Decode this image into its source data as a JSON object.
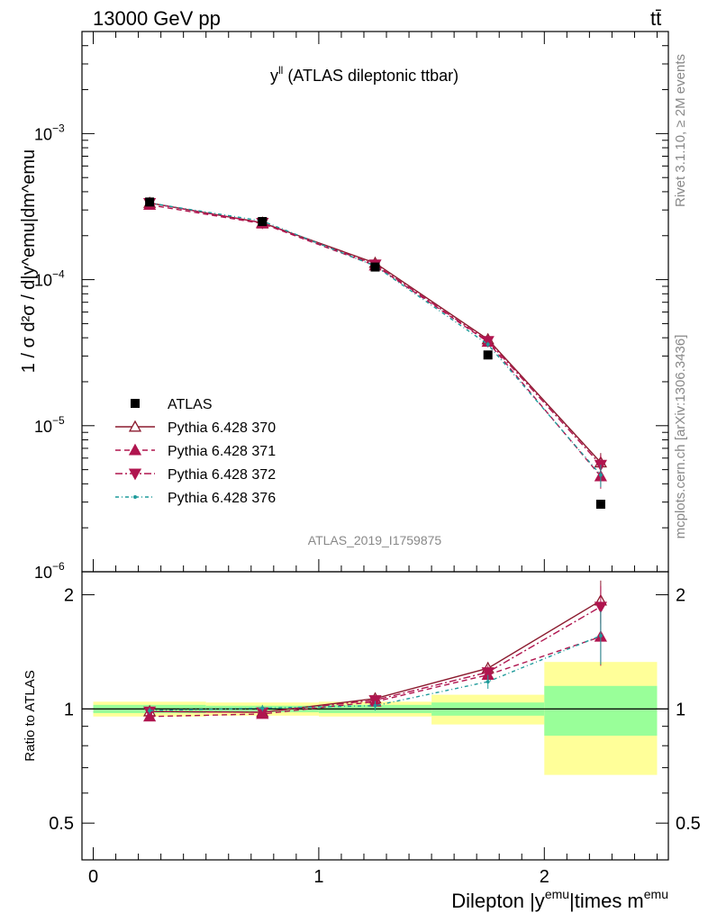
{
  "header": {
    "left": "13000 GeV pp",
    "right": "tt̄"
  },
  "side_labels": {
    "rivet": "Rivet 3.1.10, ≥ 2M events",
    "mcplots": "mcplots.cern.ch [arXiv:1306.3436]"
  },
  "chart_data": [
    {
      "type": "line",
      "panel": "main",
      "title": "y^ll (ATLAS dileptonic ttbar)",
      "title_main": "y",
      "title_sup": "ll",
      "title_rest": " (ATLAS dileptonic ttbar)",
      "ylabel": "1 / σ d²σ / d|y^emu|dm^emu",
      "yscale": "log",
      "ylim": [
        1e-06,
        0.005
      ],
      "xlim": [
        -0.05,
        2.55
      ],
      "yticks": [
        {
          "value": 0.001,
          "base": "10",
          "exp": "−3"
        },
        {
          "value": 0.0001,
          "base": "10",
          "exp": "−4"
        },
        {
          "value": 1e-05,
          "base": "10",
          "exp": "−5"
        },
        {
          "value": 1e-06,
          "base": "10",
          "exp": "−6"
        }
      ],
      "watermark": "ATLAS_2019_I1759875",
      "legend_position": "bottom-left",
      "data": {
        "name": "ATLAS",
        "x": [
          0.25,
          0.75,
          1.25,
          1.75,
          2.25
        ],
        "y": [
          0.00034,
          0.00025,
          0.000122,
          3.05e-05,
          2.9e-06
        ]
      },
      "series": [
        {
          "name": "Pythia 6.428 370",
          "color": "#8b1a2e",
          "dash": "",
          "marker": "triangle-up-open",
          "x": [
            0.25,
            0.75,
            1.25,
            1.75,
            2.25
          ],
          "y": [
            0.000335,
            0.000245,
            0.00013,
            3.9e-05,
            5.6e-06
          ],
          "err": [
            8e-06,
            6e-06,
            4e-06,
            1.5e-06,
            9e-07
          ]
        },
        {
          "name": "Pythia 6.428 371",
          "color": "#b0154f",
          "dash": "6,4",
          "marker": "triangle-up",
          "x": [
            0.25,
            0.75,
            1.25,
            1.75,
            2.25
          ],
          "y": [
            0.000325,
            0.000242,
            0.000125,
            3.75e-05,
            4.5e-06
          ],
          "err": [
            8e-06,
            6e-06,
            4e-06,
            1.5e-06,
            8e-07
          ]
        },
        {
          "name": "Pythia 6.428 372",
          "color": "#b0154f",
          "dash": "8,3,2,3",
          "marker": "triangle-down",
          "x": [
            0.25,
            0.75,
            1.25,
            1.75,
            2.25
          ],
          "y": [
            0.000335,
            0.000245,
            0.000127,
            3.8e-05,
            5.4e-06
          ],
          "err": [
            8e-06,
            6e-06,
            4e-06,
            1.5e-06,
            9e-07
          ]
        },
        {
          "name": "Pythia 6.428 376",
          "color": "#1f9b9b",
          "dash": "4,3,1,3",
          "marker": "dot",
          "x": [
            0.25,
            0.75,
            1.25,
            1.75,
            2.25
          ],
          "y": [
            0.000335,
            0.000252,
            0.000124,
            3.6e-05,
            4.6e-06
          ],
          "err": [
            8e-06,
            6e-06,
            4e-06,
            1.5e-06,
            8e-07
          ]
        }
      ]
    },
    {
      "type": "line",
      "panel": "ratio",
      "ylabel": "Ratio to ATLAS",
      "xlabel": "Dilepton |y^emu|times m^emu",
      "xlabel_parts": [
        "Dilepton |y",
        "emu",
        "|times m",
        "emu"
      ],
      "yscale": "log",
      "ylim": [
        0.4,
        2.3
      ],
      "xlim": [
        -0.05,
        2.55
      ],
      "yticks": [
        {
          "value": 0.5,
          "label": "0.5"
        },
        {
          "value": 1,
          "label": "1"
        },
        {
          "value": 2,
          "label": "2"
        }
      ],
      "xticks": [
        {
          "value": 0,
          "label": "0"
        },
        {
          "value": 1,
          "label": "1"
        },
        {
          "value": 2,
          "label": "2"
        }
      ],
      "bands": [
        {
          "x0": 0.0,
          "x1": 0.5,
          "yellow": [
            0.955,
            1.045
          ],
          "green": [
            0.975,
            1.025
          ]
        },
        {
          "x0": 0.5,
          "x1": 1.0,
          "yellow": [
            0.96,
            1.04
          ],
          "green": [
            0.98,
            1.02
          ]
        },
        {
          "x0": 1.0,
          "x1": 1.5,
          "yellow": [
            0.955,
            1.045
          ],
          "green": [
            0.975,
            1.025
          ]
        },
        {
          "x0": 1.5,
          "x1": 2.0,
          "yellow": [
            0.91,
            1.09
          ],
          "green": [
            0.96,
            1.04
          ]
        },
        {
          "x0": 2.0,
          "x1": 2.5,
          "yellow": [
            0.67,
            1.33
          ],
          "green": [
            0.85,
            1.15
          ]
        }
      ],
      "series": [
        {
          "name": "Pythia 6.428 370",
          "y": [
            0.985,
            0.98,
            1.065,
            1.28,
            1.93
          ],
          "err": [
            0.02,
            0.02,
            0.03,
            0.05,
            0.25
          ]
        },
        {
          "name": "Pythia 6.428 371",
          "y": [
            0.955,
            0.97,
            1.045,
            1.23,
            1.55
          ],
          "err": [
            0.02,
            0.02,
            0.03,
            0.05,
            0.25
          ]
        },
        {
          "name": "Pythia 6.428 372",
          "y": [
            0.985,
            0.98,
            1.055,
            1.25,
            1.86
          ],
          "err": [
            0.02,
            0.02,
            0.03,
            0.05,
            0.25
          ]
        },
        {
          "name": "Pythia 6.428 376",
          "y": [
            0.99,
            1.005,
            1.02,
            1.18,
            1.56
          ],
          "err": [
            0.02,
            0.02,
            0.03,
            0.05,
            0.25
          ]
        }
      ]
    }
  ]
}
